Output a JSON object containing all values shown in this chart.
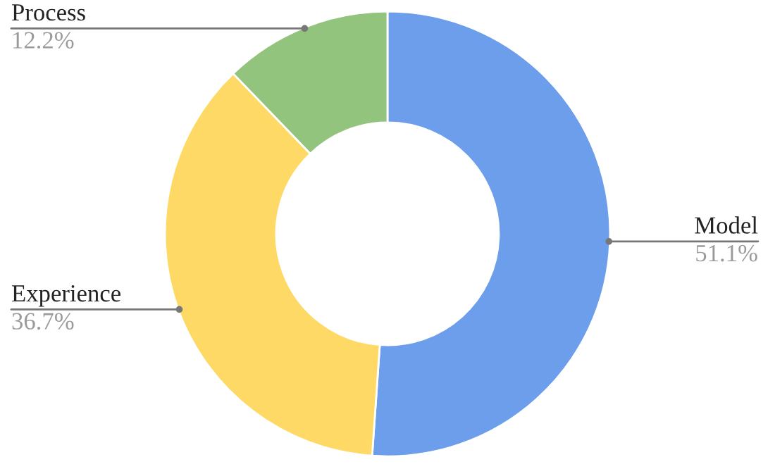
{
  "chart_data": {
    "type": "donut",
    "categories": [
      "Model",
      "Experience",
      "Process"
    ],
    "values": [
      51.1,
      36.7,
      12.2
    ],
    "colors": [
      "#6d9eeb",
      "#ffd966",
      "#93c47d"
    ],
    "value_labels": [
      "51.1%",
      "36.7%",
      "12.2%"
    ],
    "legend": false
  }
}
